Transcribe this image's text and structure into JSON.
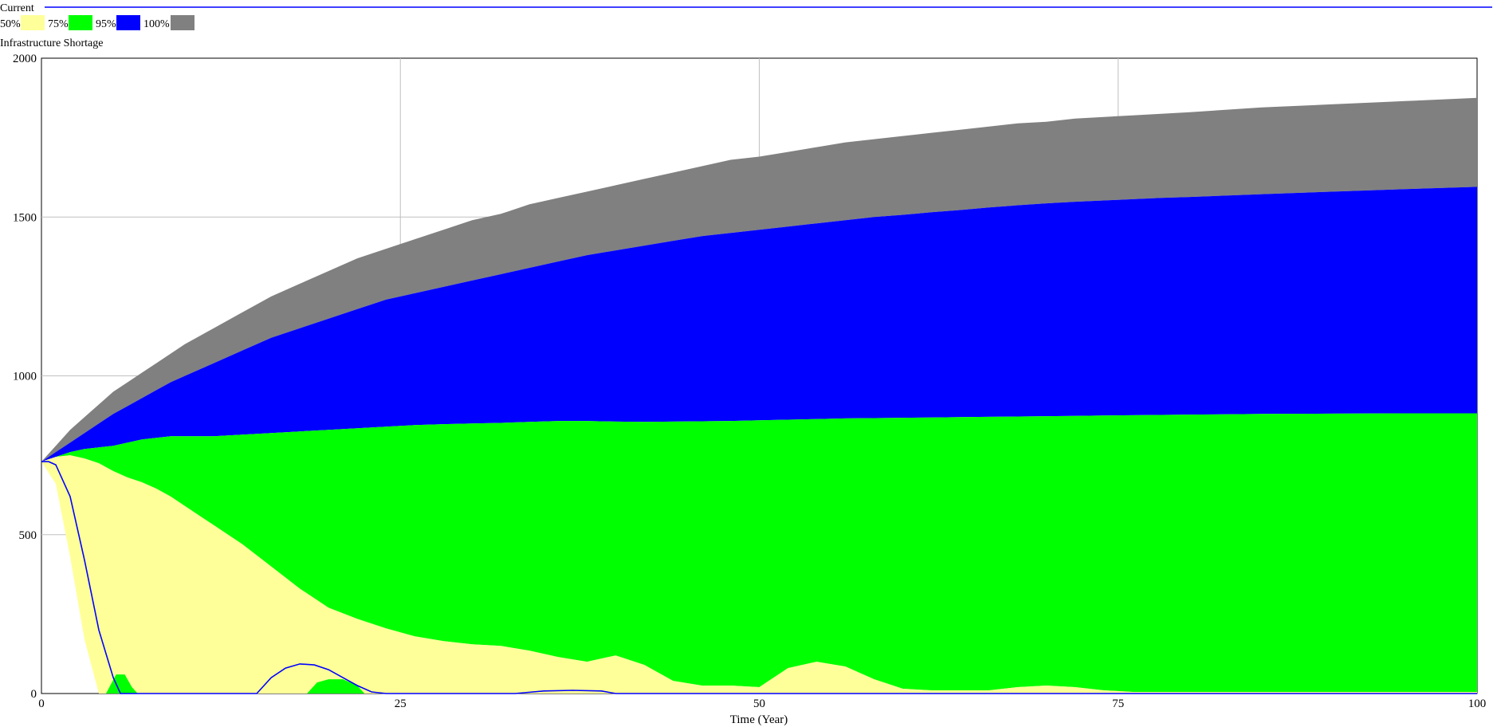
{
  "header": {
    "dataset_label": "Current",
    "variable_label": "Infrastructure Shortage"
  },
  "chart_data": {
    "type": "area",
    "title": "Infrastructure Shortage",
    "xlabel": "Time (Year)",
    "ylabel": "",
    "xlim": [
      0,
      100
    ],
    "ylim": [
      0,
      2000
    ],
    "x_ticks": [
      0,
      25,
      50,
      75,
      100
    ],
    "y_ticks": [
      0,
      500,
      1000,
      1500,
      2000
    ],
    "grid": true,
    "legend_position": "top-left",
    "bands": [
      {
        "name": "50%",
        "color": "#ffff99"
      },
      {
        "name": "75%",
        "color": "#00ff00"
      },
      {
        "name": "95%",
        "color": "#0000ff"
      },
      {
        "name": "100%",
        "color": "#808080"
      }
    ],
    "x": [
      0,
      1,
      2,
      3,
      4,
      5,
      6,
      7,
      8,
      9,
      10,
      12,
      14,
      16,
      18,
      20,
      22,
      24,
      26,
      28,
      30,
      32,
      34,
      36,
      38,
      40,
      42,
      44,
      46,
      48,
      50,
      52,
      54,
      56,
      58,
      60,
      62,
      64,
      66,
      68,
      70,
      72,
      74,
      76,
      78,
      80,
      85,
      90,
      95,
      100
    ],
    "boundaries": {
      "upper_100": [
        730,
        780,
        830,
        870,
        910,
        950,
        980,
        1010,
        1040,
        1070,
        1100,
        1150,
        1200,
        1250,
        1290,
        1330,
        1370,
        1400,
        1430,
        1460,
        1490,
        1510,
        1540,
        1560,
        1580,
        1600,
        1620,
        1640,
        1660,
        1680,
        1690,
        1705,
        1720,
        1735,
        1745,
        1755,
        1765,
        1775,
        1785,
        1795,
        1800,
        1810,
        1815,
        1820,
        1825,
        1830,
        1845,
        1855,
        1865,
        1875
      ],
      "upper_95": [
        730,
        760,
        790,
        820,
        850,
        880,
        905,
        930,
        955,
        980,
        1000,
        1040,
        1080,
        1120,
        1150,
        1180,
        1210,
        1240,
        1260,
        1280,
        1300,
        1320,
        1340,
        1360,
        1380,
        1395,
        1410,
        1425,
        1440,
        1450,
        1460,
        1470,
        1480,
        1490,
        1500,
        1507,
        1515,
        1522,
        1530,
        1537,
        1543,
        1548,
        1552,
        1556,
        1560,
        1563,
        1572,
        1580,
        1588,
        1595
      ],
      "upper_75": [
        730,
        745,
        760,
        770,
        775,
        780,
        790,
        800,
        805,
        810,
        810,
        810,
        815,
        820,
        825,
        830,
        835,
        840,
        845,
        848,
        850,
        852,
        855,
        858,
        858,
        856,
        855,
        856,
        857,
        858,
        860,
        862,
        864,
        866,
        867,
        868,
        869,
        870,
        871,
        872,
        873,
        874,
        875,
        876,
        877,
        878,
        880,
        881,
        882,
        882
      ],
      "upper_50": [
        730,
        745,
        750,
        740,
        725,
        700,
        680,
        665,
        645,
        620,
        590,
        530,
        470,
        400,
        330,
        270,
        235,
        205,
        180,
        165,
        155,
        150,
        135,
        115,
        100,
        120,
        90,
        40,
        25,
        25,
        20,
        80,
        100,
        85,
        45,
        15,
        10,
        10,
        10,
        20,
        25,
        20,
        10,
        5,
        5,
        5,
        5,
        5,
        5,
        5
      ],
      "lower_50": [
        730,
        660,
        430,
        170,
        0,
        0,
        0,
        0,
        0,
        0,
        0,
        0,
        0,
        0,
        0,
        0,
        0,
        0,
        0,
        0,
        0,
        0,
        0,
        0,
        0,
        0,
        0,
        0,
        0,
        0,
        0,
        0,
        0,
        0,
        0,
        0,
        0,
        0,
        0,
        0,
        0,
        0,
        0,
        0,
        0,
        0,
        0,
        0,
        0,
        0
      ]
    },
    "lines": [
      {
        "color": "#0000ff",
        "x": [
          0,
          0.5,
          1,
          2,
          3,
          4,
          5,
          5.5,
          6,
          15,
          16,
          17,
          18,
          19,
          20,
          21,
          22,
          23,
          24,
          33,
          35,
          37,
          39,
          40,
          100
        ],
        "y": [
          730,
          730,
          720,
          620,
          420,
          200,
          50,
          0,
          0,
          0,
          50,
          80,
          93,
          90,
          75,
          50,
          25,
          5,
          0,
          0,
          8,
          10,
          8,
          0,
          0
        ]
      }
    ],
    "extra_fills": [
      {
        "color": "#00ff00",
        "x": [
          4.5,
          5.2,
          5.8,
          6.3,
          6.7
        ],
        "y": [
          0,
          60,
          60,
          20,
          0
        ]
      },
      {
        "color": "#00ff00",
        "x": [
          18.5,
          19.2,
          20,
          21,
          22,
          22.5
        ],
        "y": [
          0,
          35,
          45,
          45,
          25,
          0
        ]
      }
    ]
  }
}
